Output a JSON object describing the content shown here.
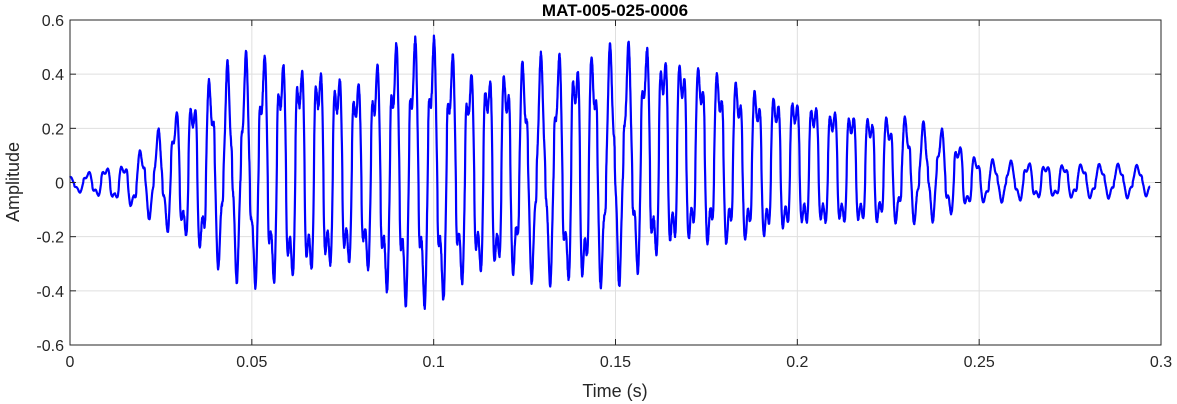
{
  "chart_data": {
    "type": "line",
    "title": "MAT-005-025-0006",
    "xlabel": "Time (s)",
    "ylabel": "Amplitude",
    "xlim": [
      0,
      0.3
    ],
    "ylim": [
      -0.6,
      0.6
    ],
    "x_ticks": [
      0,
      0.05,
      0.1,
      0.15,
      0.2,
      0.25,
      0.3
    ],
    "x_tick_labels": [
      "0",
      "0.05",
      "0.1",
      "0.15",
      "0.2",
      "0.25",
      "0.3"
    ],
    "y_ticks": [
      -0.6,
      -0.4,
      -0.2,
      0,
      0.2,
      0.4,
      0.6
    ],
    "y_tick_labels": [
      "-0.6",
      "-0.4",
      "-0.2",
      "0",
      "0.2",
      "0.4",
      "0.6"
    ],
    "grid": true,
    "line_color": "#0000ff",
    "series": [
      {
        "name": "",
        "description_x_end": 0.297,
        "envelope": {
          "t": [
            0.0,
            0.01,
            0.015,
            0.02,
            0.03,
            0.04,
            0.05,
            0.06,
            0.07,
            0.08,
            0.09,
            0.1,
            0.11,
            0.12,
            0.13,
            0.14,
            0.15,
            0.16,
            0.17,
            0.18,
            0.19,
            0.2,
            0.21,
            0.22,
            0.23,
            0.24,
            0.25,
            0.26,
            0.27,
            0.28,
            0.29,
            0.297
          ],
          "pos": [
            0.02,
            0.06,
            0.07,
            0.13,
            0.29,
            0.42,
            0.5,
            0.48,
            0.46,
            0.4,
            0.55,
            0.56,
            0.44,
            0.45,
            0.48,
            0.5,
            0.52,
            0.53,
            0.48,
            0.42,
            0.36,
            0.34,
            0.3,
            0.27,
            0.25,
            0.2,
            0.09,
            0.08,
            0.07,
            0.07,
            0.07,
            0.06
          ],
          "neg": [
            -0.03,
            -0.06,
            -0.08,
            -0.12,
            -0.22,
            -0.32,
            -0.4,
            -0.41,
            -0.37,
            -0.33,
            -0.48,
            -0.49,
            -0.38,
            -0.37,
            -0.38,
            -0.42,
            -0.39,
            -0.33,
            -0.26,
            -0.26,
            -0.24,
            -0.2,
            -0.19,
            -0.18,
            -0.16,
            -0.14,
            -0.08,
            -0.07,
            -0.06,
            -0.06,
            -0.06,
            -0.05
          ]
        },
        "base_frequency_hz": 200,
        "secondary_frequency_hz": 580
      }
    ]
  }
}
